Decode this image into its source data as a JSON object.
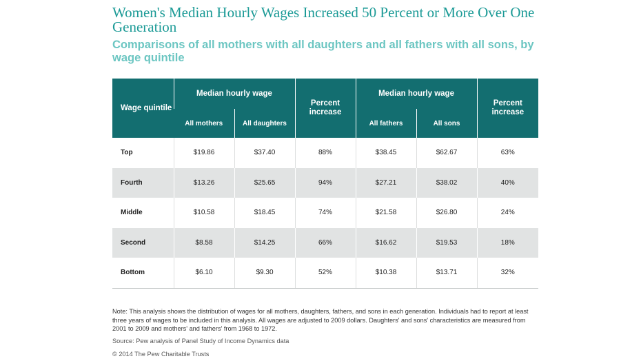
{
  "chart_data": {
    "type": "table",
    "title": "Women's Median Hourly Wages Increased 50 Percent or More Over One Generation",
    "subtitle": "Comparisons of all mothers with all daughters and all fathers with all sons, by wage quintile",
    "header": {
      "quintile": "Wage quintile",
      "median_wage": "Median hourly wage",
      "percent_increase": "Percent increase",
      "all_mothers": "All mothers",
      "all_daughters": "All daughters",
      "all_fathers": "All fathers",
      "all_sons": "All sons"
    },
    "columns": [
      "Wage quintile",
      "All mothers",
      "All daughters",
      "Percent increase",
      "All fathers",
      "All sons",
      "Percent increase"
    ],
    "rows": [
      {
        "quintile": "Top",
        "mothers": "$19.86",
        "daughters": "$37.40",
        "women_increase": "88%",
        "fathers": "$38.45",
        "sons": "$62.67",
        "men_increase": "63%"
      },
      {
        "quintile": "Fourth",
        "mothers": "$13.26",
        "daughters": "$25.65",
        "women_increase": "94%",
        "fathers": "$27.21",
        "sons": "$38.02",
        "men_increase": "40%"
      },
      {
        "quintile": "Middle",
        "mothers": "$10.58",
        "daughters": "$18.45",
        "women_increase": "74%",
        "fathers": "$21.58",
        "sons": "$26.80",
        "men_increase": "24%"
      },
      {
        "quintile": "Second",
        "mothers": "$8.58",
        "daughters": "$14.25",
        "women_increase": "66%",
        "fathers": "$16.62",
        "sons": "$19.53",
        "men_increase": "18%"
      },
      {
        "quintile": "Bottom",
        "mothers": "$6.10",
        "daughters": "$9.30",
        "women_increase": "52%",
        "fathers": "$10.38",
        "sons": "$13.71",
        "men_increase": "32%"
      }
    ]
  },
  "note": "Note: This analysis shows the distribution of wages for all mothers, daughters, fathers, and sons in each generation. Individuals had to report at least three years of wages to be included in this analysis. All wages are adjusted to 2009 dollars. Daughters' and sons' characteristics are measured from 2001 to 2009 and mothers' and fathers' from 1968 to 1972.",
  "source": "Source: Pew analysis of Panel Study of Income Dynamics data",
  "copyright": "© 2014 The Pew Charitable Trusts",
  "colors": {
    "header_bg": "#136e70",
    "title": "#1b9a96",
    "subtitle": "#6cc6c2",
    "stripe": "#e1e3e3"
  }
}
